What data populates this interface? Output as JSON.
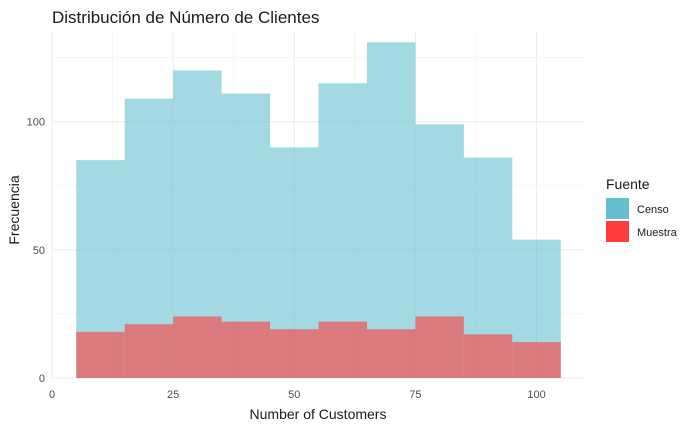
{
  "chart_data": {
    "type": "histogram",
    "title": "Distribución de Número de Clientes",
    "xlabel": "Number of Customers",
    "ylabel": "Frecuencia",
    "xlim": [
      0,
      110
    ],
    "ylim": [
      0,
      135
    ],
    "x_ticks": [
      0,
      25,
      50,
      75,
      100
    ],
    "y_ticks": [
      0,
      50,
      100
    ],
    "grid": true,
    "legend": {
      "title": "Fuente",
      "position": "right"
    },
    "bins": [
      [
        5,
        15
      ],
      [
        15,
        25
      ],
      [
        25,
        35
      ],
      [
        35,
        45
      ],
      [
        45,
        55
      ],
      [
        55,
        65
      ],
      [
        65,
        75
      ],
      [
        75,
        85
      ],
      [
        85,
        95
      ],
      [
        95,
        105
      ]
    ],
    "series": [
      {
        "name": "Censo",
        "color": "#66bfd1",
        "values": [
          85,
          109,
          120,
          111,
          90,
          115,
          131,
          99,
          86,
          54
        ]
      },
      {
        "name": "Muestra",
        "color": "#ff3b3b",
        "values": [
          18,
          21,
          24,
          22,
          19,
          22,
          19,
          24,
          17,
          14
        ]
      }
    ]
  }
}
